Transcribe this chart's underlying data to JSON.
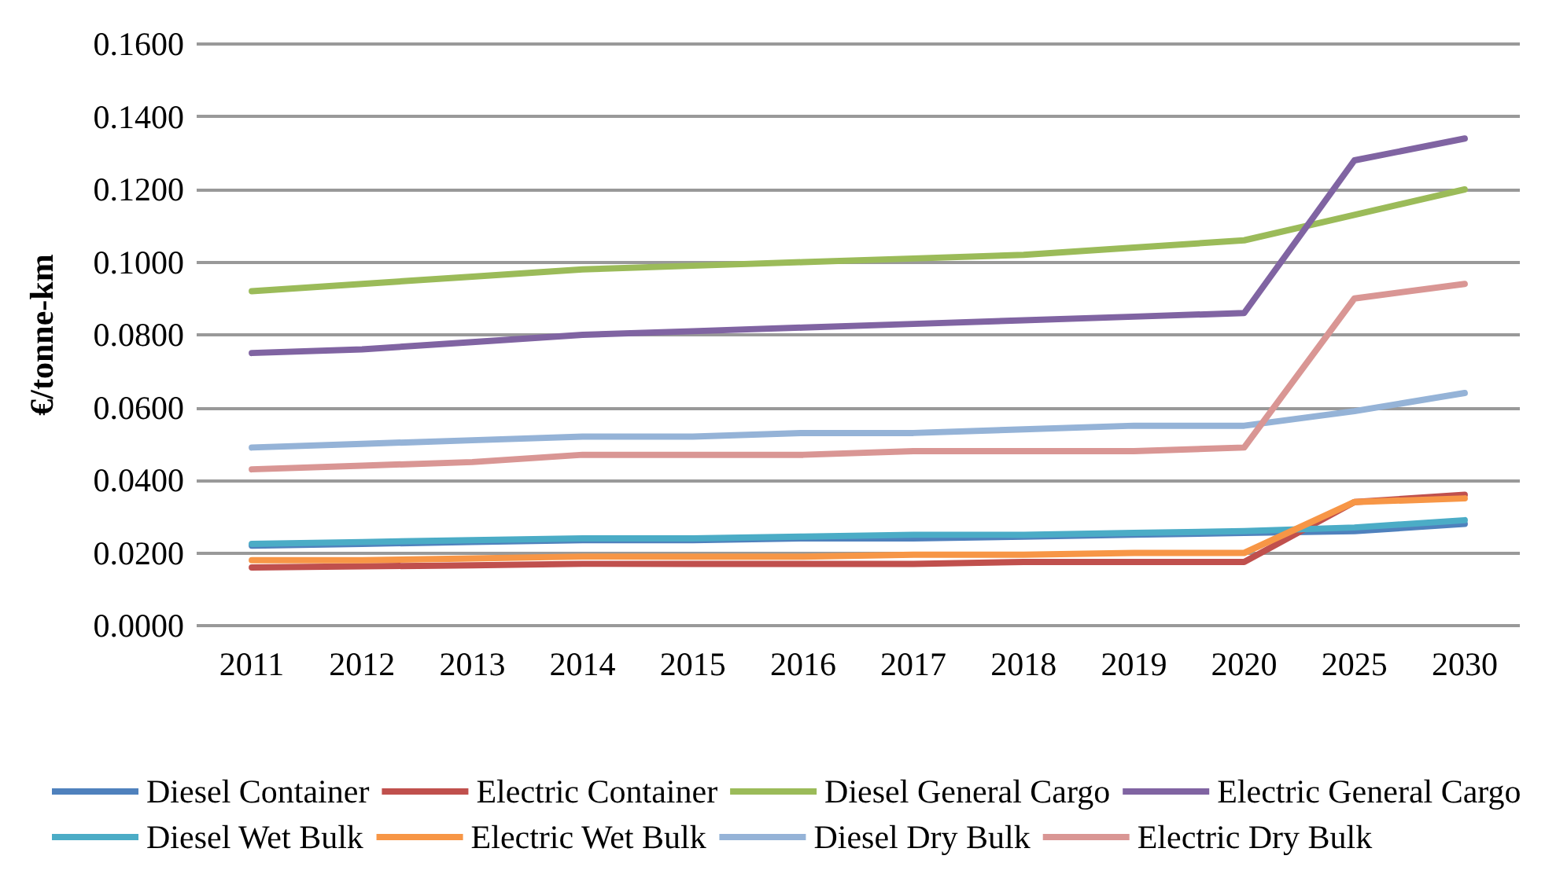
{
  "chart_data": {
    "type": "line",
    "ylabel": "€/tonne-km",
    "categories": [
      "2011",
      "2012",
      "2013",
      "2014",
      "2015",
      "2016",
      "2017",
      "2018",
      "2019",
      "2020",
      "2025",
      "2030"
    ],
    "ylim": [
      0,
      0.16
    ],
    "yticks": [
      {
        "value": 0,
        "label": "0.0000"
      },
      {
        "value": 0.02,
        "label": "0.0200"
      },
      {
        "value": 0.04,
        "label": "0.0400"
      },
      {
        "value": 0.06,
        "label": "0.0600"
      },
      {
        "value": 0.08,
        "label": "0.0800"
      },
      {
        "value": 0.1,
        "label": "0.1000"
      },
      {
        "value": 0.12,
        "label": "0.1200"
      },
      {
        "value": 0.14,
        "label": "0.1400"
      },
      {
        "value": 0.16,
        "label": "0.1600"
      }
    ],
    "grid": "y",
    "legend": "bottom",
    "marker": "none",
    "line_style": "solid",
    "series": [
      {
        "name": "Diesel Container",
        "color": "#4f81bd",
        "values": [
          0.022,
          0.0225,
          0.023,
          0.0235,
          0.0235,
          0.024,
          0.024,
          0.0245,
          0.025,
          0.0255,
          0.026,
          0.028
        ]
      },
      {
        "name": "Electric Container",
        "color": "#c0504d",
        "values": [
          0.016,
          0.0163,
          0.0166,
          0.017,
          0.017,
          0.017,
          0.017,
          0.0175,
          0.0175,
          0.0175,
          0.034,
          0.036
        ]
      },
      {
        "name": "Diesel General Cargo",
        "color": "#9bbb59",
        "values": [
          0.092,
          0.094,
          0.096,
          0.098,
          0.099,
          0.1,
          0.101,
          0.102,
          0.104,
          0.106,
          0.113,
          0.12
        ]
      },
      {
        "name": "Electric General Cargo",
        "color": "#8064a2",
        "values": [
          0.075,
          0.076,
          0.078,
          0.08,
          0.081,
          0.082,
          0.083,
          0.084,
          0.085,
          0.086,
          0.128,
          0.134
        ]
      },
      {
        "name": "Diesel Wet Bulk",
        "color": "#4bacc6",
        "values": [
          0.0225,
          0.023,
          0.0235,
          0.024,
          0.024,
          0.0245,
          0.025,
          0.025,
          0.0255,
          0.026,
          0.027,
          0.029
        ]
      },
      {
        "name": "Electric Wet Bulk",
        "color": "#f79646",
        "values": [
          0.018,
          0.018,
          0.0185,
          0.019,
          0.019,
          0.019,
          0.0195,
          0.0195,
          0.02,
          0.02,
          0.034,
          0.035
        ]
      },
      {
        "name": "Diesel Dry Bulk",
        "color": "#95b3d7",
        "values": [
          0.049,
          0.05,
          0.051,
          0.052,
          0.052,
          0.053,
          0.053,
          0.054,
          0.055,
          0.055,
          0.059,
          0.064
        ]
      },
      {
        "name": "Electric Dry Bulk",
        "color": "#d99694",
        "values": [
          0.043,
          0.044,
          0.045,
          0.047,
          0.047,
          0.047,
          0.048,
          0.048,
          0.048,
          0.049,
          0.09,
          0.094
        ]
      }
    ]
  }
}
